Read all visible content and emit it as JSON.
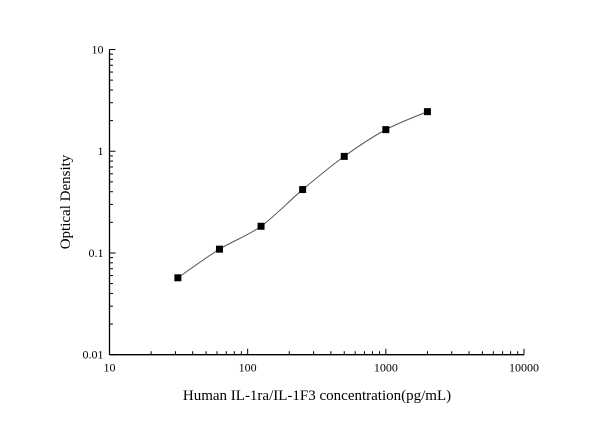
{
  "chart_data": {
    "type": "line",
    "title": "",
    "xlabel": "Human IL-1ra/IL-1F3 concentration(pg/mL)",
    "ylabel": "Optical Density",
    "xscale": "log",
    "yscale": "log",
    "xlim": [
      10,
      10000
    ],
    "ylim": [
      0.01,
      10
    ],
    "xticks": [
      "10",
      "100",
      "1000",
      "10000"
    ],
    "yticks": [
      "0.01",
      "0.1",
      "1",
      "10"
    ],
    "grid": false,
    "marker": "square",
    "color": "#000000",
    "line_color": "#555555",
    "series": [
      {
        "x": [
          31.25,
          62.5,
          125,
          250,
          500,
          1000,
          2000
        ],
        "y": [
          0.057,
          0.109,
          0.183,
          0.42,
          0.89,
          1.63,
          2.45
        ]
      }
    ]
  }
}
